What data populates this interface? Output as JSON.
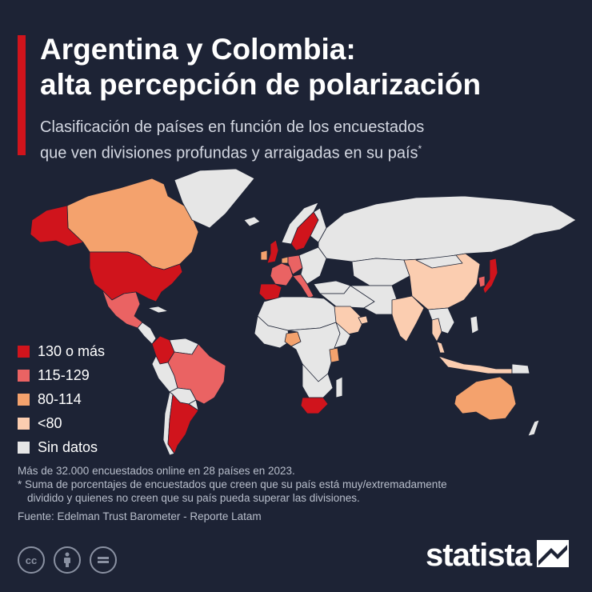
{
  "header": {
    "title_line1": "Argentina y Colombia:",
    "title_line2": "alta percepción de polarización",
    "subtitle_line1": "Clasificación de países en función de los encuestados",
    "subtitle_line2": "que ven divisiones profundas y arraigadas en su país",
    "subtitle_mark": "*"
  },
  "colors": {
    "background": "#1d2335",
    "accent": "#d0141c",
    "no_data": "#e6e6e6",
    "borders": "#1d2335"
  },
  "legend": [
    {
      "label": "130 o más",
      "color": "#d0141c"
    },
    {
      "label": "115-129",
      "color": "#ea6363"
    },
    {
      "label": "80-114",
      "color": "#f4a26d"
    },
    {
      "label": "<80",
      "color": "#fbcdb0"
    },
    {
      "label": "Sin datos",
      "color": "#e6e6e6"
    }
  ],
  "map": {
    "countries_by_class": {
      "130 o más": [
        "Estados Unidos",
        "Colombia",
        "Argentina",
        "Sudáfrica",
        "España",
        "Reino Unido",
        "Suecia",
        "Japón"
      ],
      "115-129": [
        "Brasil",
        "México",
        "Francia",
        "Alemania",
        "Italia",
        "Corea del Sur"
      ],
      "80-114": [
        "Canadá",
        "Australia",
        "Irlanda",
        "Países Bajos",
        "Nigeria",
        "Kenia"
      ],
      "<80": [
        "China",
        "India",
        "Arabia Saudita",
        "Emiratos Árabes Unidos",
        "Tailandia",
        "Malasia",
        "Singapur",
        "Indonesia"
      ]
    }
  },
  "notes": {
    "line1": "Más de 32.000 encuestados online en 28 países en 2023.",
    "line2": "* Suma de porcentajes de encuestados que creen que su país está muy/extremadamente",
    "line3": "dividido y quienes no creen que su país pueda superar las divisiones.",
    "source": "Fuente: Edelman Trust Barometer - Reporte Latam"
  },
  "footer": {
    "cc_icons": [
      "creative-commons-icon",
      "attribution-icon",
      "no-derivatives-icon"
    ],
    "brand": "statista"
  }
}
